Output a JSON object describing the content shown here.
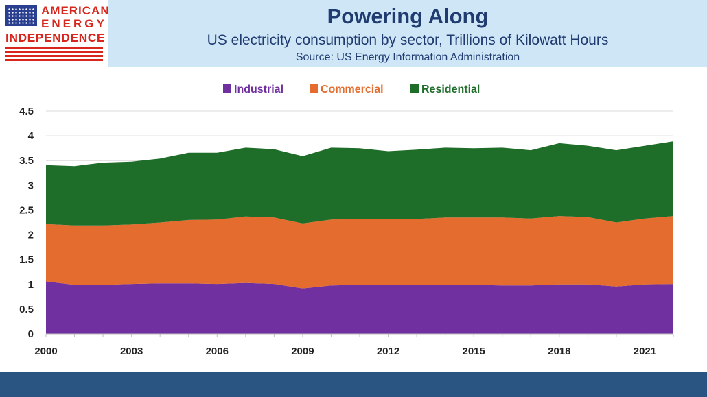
{
  "logo": {
    "line1": "AMERICAN",
    "line2": "ENERGY",
    "line3": "INDEPENDENCE"
  },
  "header": {
    "title": "Powering Along",
    "subtitle": "US electricity consumption by sector, Trillions of Kilowatt Hours",
    "source": "Source: US Energy Information Administration"
  },
  "chart_data": {
    "type": "area",
    "stacked": true,
    "x": [
      2000,
      2001,
      2002,
      2003,
      2004,
      2005,
      2006,
      2007,
      2008,
      2009,
      2010,
      2011,
      2012,
      2013,
      2014,
      2015,
      2016,
      2017,
      2018,
      2019,
      2020,
      2021,
      2022
    ],
    "x_tick_labels": [
      "2000",
      "2003",
      "2006",
      "2009",
      "2012",
      "2015",
      "2018",
      "2021"
    ],
    "y_tick_labels": [
      "0",
      "0.5",
      "1",
      "1.5",
      "2",
      "2.5",
      "3",
      "3.5",
      "4",
      "4.5"
    ],
    "ylim": [
      0,
      4.5
    ],
    "grid": true,
    "legend_position": "top",
    "series": [
      {
        "name": "Industrial",
        "color": "#7030a0",
        "values": [
          1.06,
          0.99,
          0.99,
          1.01,
          1.02,
          1.02,
          1.01,
          1.03,
          1.01,
          0.92,
          0.98,
          0.99,
          0.99,
          0.99,
          0.99,
          0.99,
          0.98,
          0.98,
          1.0,
          1.0,
          0.96,
          1.0,
          1.01
        ]
      },
      {
        "name": "Commercial",
        "color": "#e46c2e",
        "values": [
          1.16,
          1.2,
          1.2,
          1.2,
          1.23,
          1.28,
          1.3,
          1.34,
          1.34,
          1.31,
          1.33,
          1.33,
          1.33,
          1.33,
          1.36,
          1.36,
          1.37,
          1.35,
          1.38,
          1.36,
          1.29,
          1.33,
          1.37
        ]
      },
      {
        "name": "Residential",
        "color": "#1e6e2a",
        "values": [
          1.19,
          1.2,
          1.27,
          1.27,
          1.29,
          1.36,
          1.35,
          1.39,
          1.38,
          1.36,
          1.45,
          1.43,
          1.37,
          1.4,
          1.41,
          1.4,
          1.41,
          1.38,
          1.47,
          1.44,
          1.46,
          1.47,
          1.51
        ]
      }
    ]
  }
}
